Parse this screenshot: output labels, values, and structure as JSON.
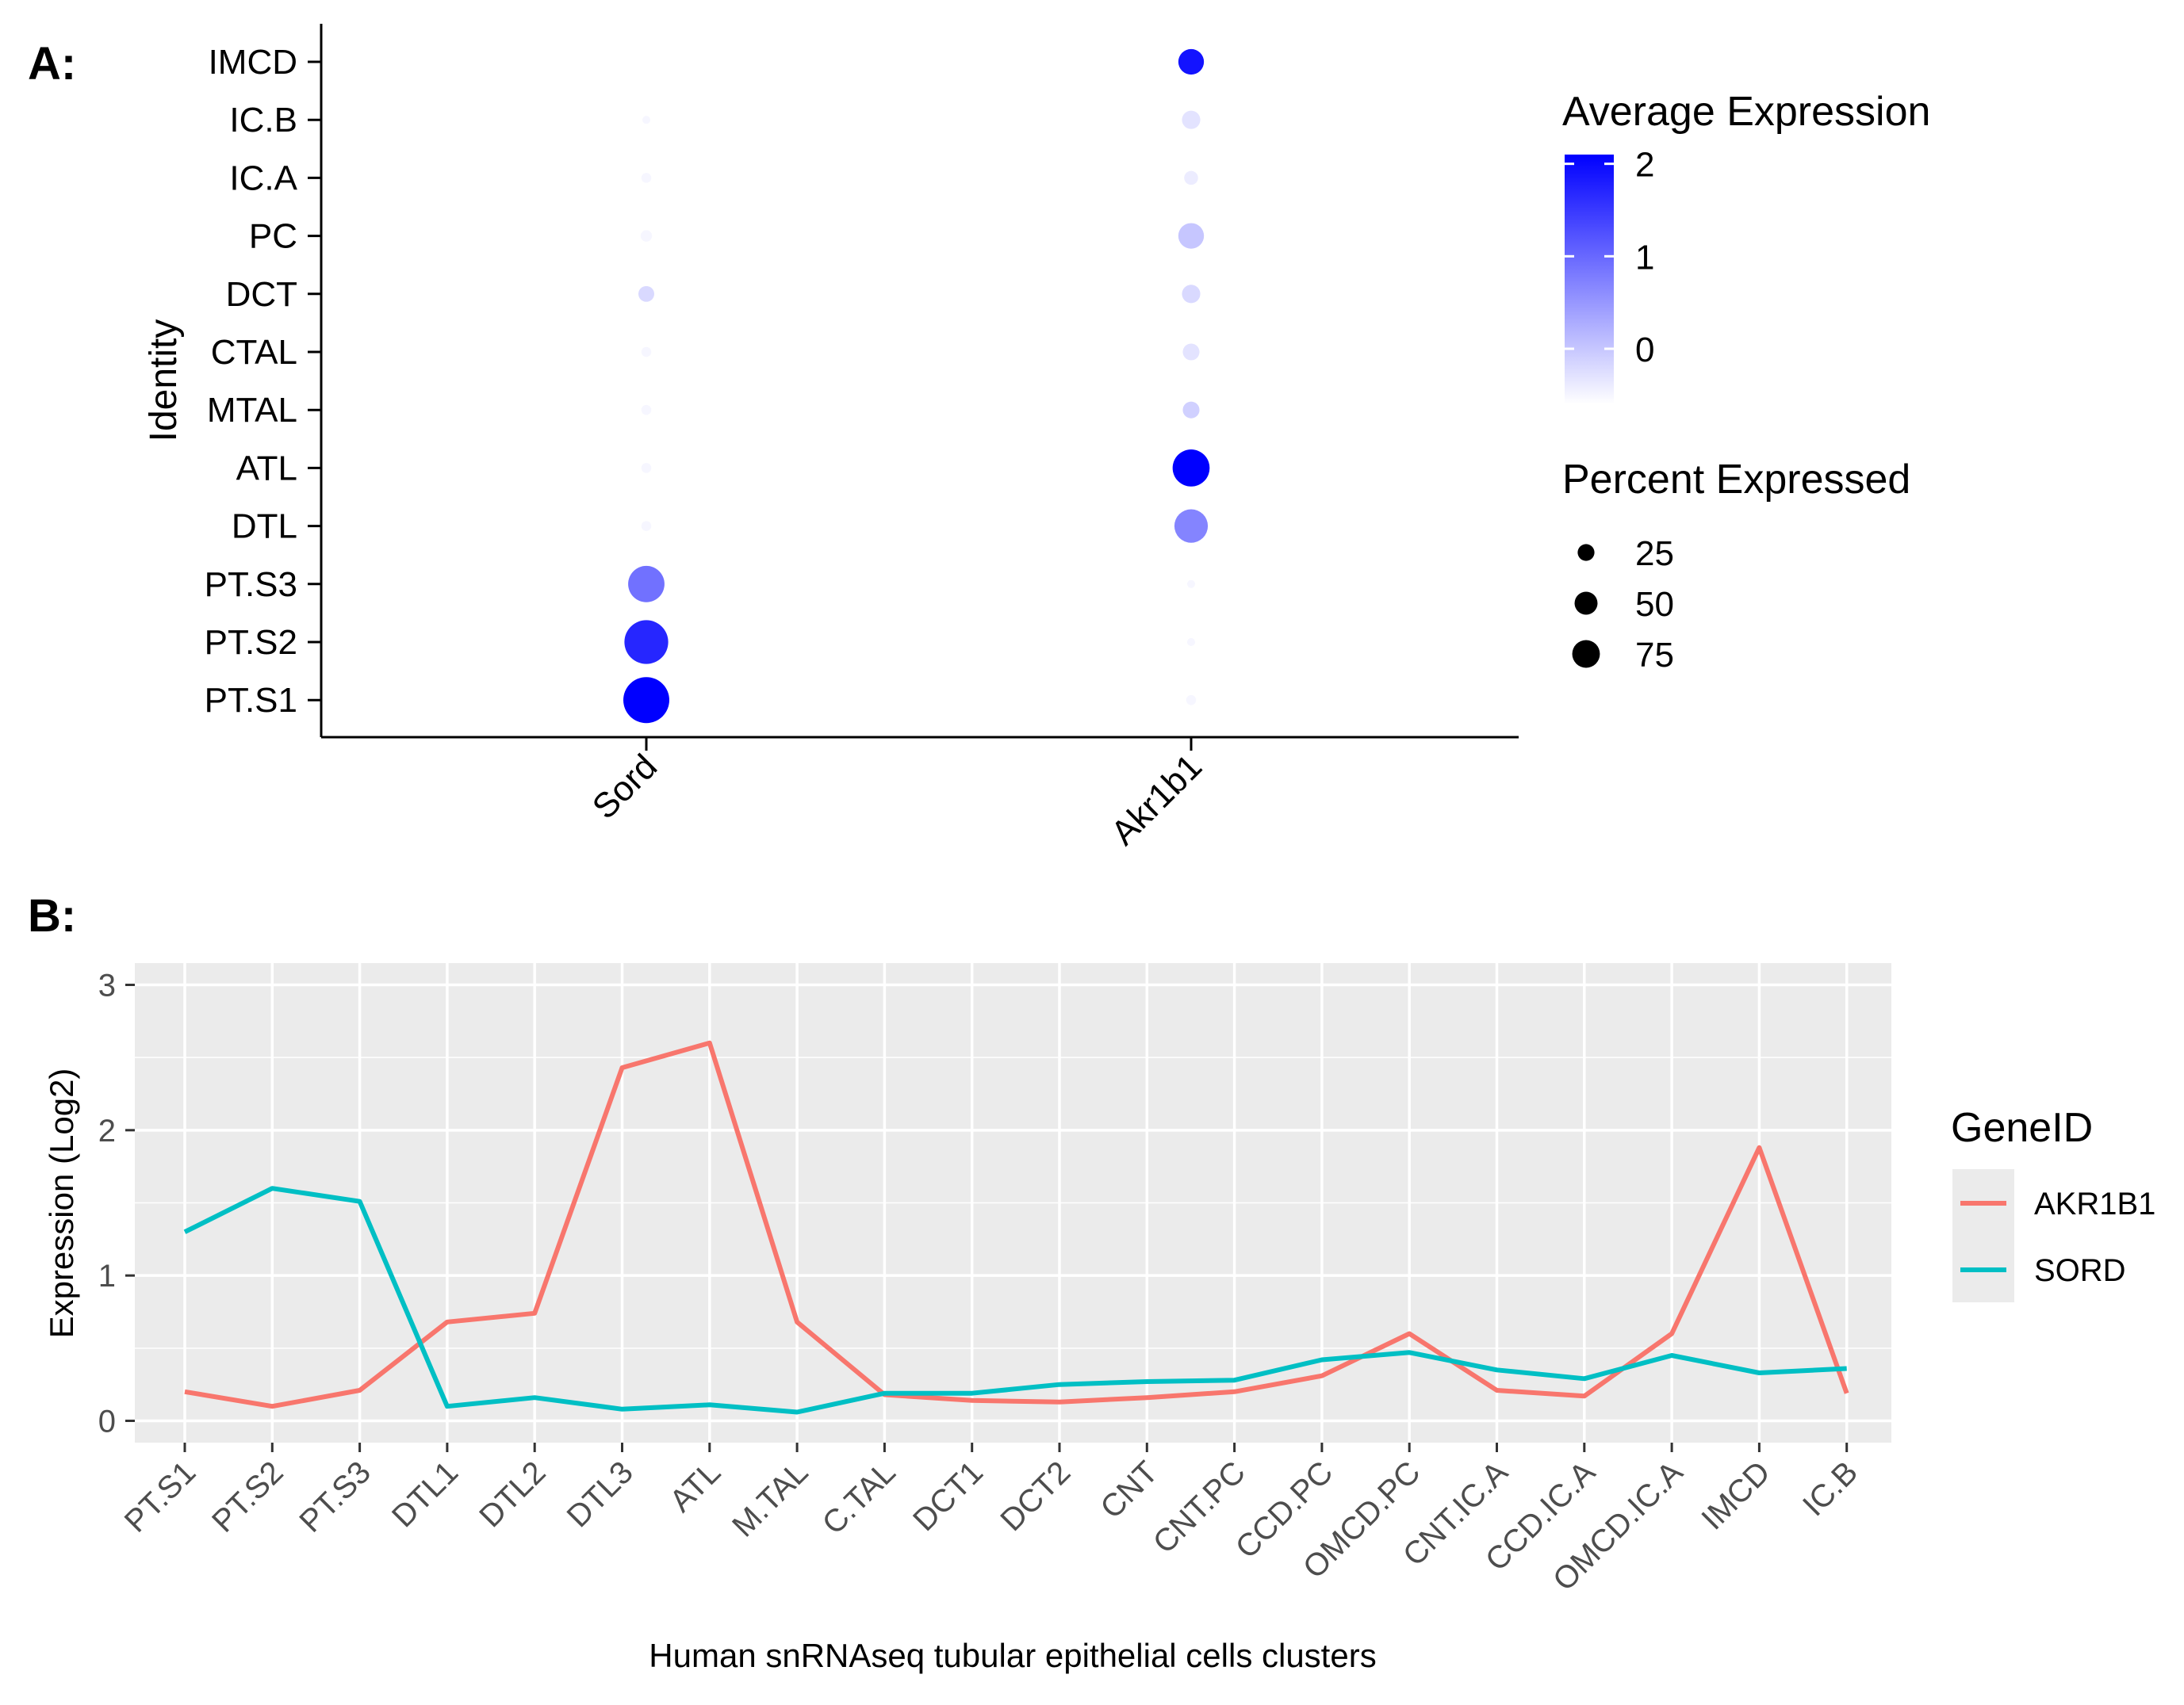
{
  "panels": {
    "a_label": "A:",
    "b_label": "B:"
  },
  "chart_data": [
    {
      "type": "scatter",
      "subtype": "dotplot",
      "ylabel": "Identity",
      "xlabel": "",
      "x_categories": [
        "Sord",
        "Akr1b1"
      ],
      "y_categories": [
        "PT.S1",
        "PT.S2",
        "PT.S3",
        "DTL",
        "ATL",
        "MTAL",
        "CTAL",
        "DCT",
        "PC",
        "IC.A",
        "IC.B",
        "IMCD"
      ],
      "points": [
        {
          "gene": "Sord",
          "identity": "PT.S1",
          "pct": 80,
          "avg": 2.1
        },
        {
          "gene": "Sord",
          "identity": "PT.S2",
          "pct": 72,
          "avg": 1.7
        },
        {
          "gene": "Sord",
          "identity": "PT.S3",
          "pct": 48,
          "avg": 0.9
        },
        {
          "gene": "Sord",
          "identity": "DTL",
          "pct": 2,
          "avg": -0.5
        },
        {
          "gene": "Sord",
          "identity": "ATL",
          "pct": 2,
          "avg": -0.5
        },
        {
          "gene": "Sord",
          "identity": "MTAL",
          "pct": 2,
          "avg": -0.5
        },
        {
          "gene": "Sord",
          "identity": "CTAL",
          "pct": 2,
          "avg": -0.5
        },
        {
          "gene": "Sord",
          "identity": "DCT",
          "pct": 7,
          "avg": -0.2
        },
        {
          "gene": "Sord",
          "identity": "PC",
          "pct": 3,
          "avg": -0.5
        },
        {
          "gene": "Sord",
          "identity": "IC.A",
          "pct": 2,
          "avg": -0.5
        },
        {
          "gene": "Sord",
          "identity": "IC.B",
          "pct": 1,
          "avg": -0.5
        },
        {
          "gene": "Akr1b1",
          "identity": "PT.S1",
          "pct": 2,
          "avg": -0.5
        },
        {
          "gene": "Akr1b1",
          "identity": "PT.S2",
          "pct": 1,
          "avg": -0.5
        },
        {
          "gene": "Akr1b1",
          "identity": "PT.S3",
          "pct": 1,
          "avg": -0.5
        },
        {
          "gene": "Akr1b1",
          "identity": "DTL",
          "pct": 40,
          "avg": 0.7
        },
        {
          "gene": "Akr1b1",
          "identity": "ATL",
          "pct": 50,
          "avg": 2.2
        },
        {
          "gene": "Akr1b1",
          "identity": "MTAL",
          "pct": 8,
          "avg": -0.1
        },
        {
          "gene": "Akr1b1",
          "identity": "CTAL",
          "pct": 8,
          "avg": -0.3
        },
        {
          "gene": "Akr1b1",
          "identity": "DCT",
          "pct": 10,
          "avg": -0.2
        },
        {
          "gene": "Akr1b1",
          "identity": "PC",
          "pct": 22,
          "avg": 0.0
        },
        {
          "gene": "Akr1b1",
          "identity": "IC.A",
          "pct": 5,
          "avg": -0.4
        },
        {
          "gene": "Akr1b1",
          "identity": "IC.B",
          "pct": 10,
          "avg": -0.3
        },
        {
          "gene": "Akr1b1",
          "identity": "IMCD",
          "pct": 22,
          "avg": 1.9
        }
      ],
      "color_legend": {
        "title": "Average Expression",
        "ticks": [
          "2",
          "1",
          "0"
        ],
        "range": [
          -0.6,
          2.1
        ],
        "low_color": "#ffffff",
        "high_color": "#0000ff"
      },
      "size_legend": {
        "title": "Percent Expressed",
        "values": [
          25,
          50,
          75
        ],
        "labels": [
          "25",
          "50",
          "75"
        ]
      },
      "colors": {
        "axis": "#000000",
        "high": "#0000ff",
        "low": "#ffffff"
      }
    },
    {
      "type": "line",
      "title": "",
      "xlabel": "Human snRNAseq tubular epithelial cells clusters",
      "ylabel": "Expression (Log2)",
      "ylim": [
        -0.15,
        3.15
      ],
      "yticks": [
        "0",
        "1",
        "2",
        "3"
      ],
      "categories": [
        "PT.S1",
        "PT.S2",
        "PT.S3",
        "DTL1",
        "DTL2",
        "DTL3",
        "ATL",
        "M.TAL",
        "C.TAL",
        "DCT1",
        "DCT2",
        "CNT",
        "CNT.PC",
        "CCD.PC",
        "OMCD.PC",
        "CNT.IC.A",
        "CCD.IC.A",
        "OMCD.IC.A",
        "IMCD",
        "IC.B"
      ],
      "series": [
        {
          "name": "AKR1B1",
          "color": "#f8766d",
          "values": [
            0.2,
            0.1,
            0.21,
            0.68,
            0.74,
            2.43,
            2.6,
            0.68,
            0.18,
            0.14,
            0.13,
            0.16,
            0.2,
            0.31,
            0.6,
            0.21,
            0.17,
            0.6,
            1.88,
            0.19
          ]
        },
        {
          "name": "SORD",
          "color": "#00bfc4",
          "values": [
            1.3,
            1.6,
            1.51,
            0.1,
            0.16,
            0.08,
            0.11,
            0.06,
            0.19,
            0.19,
            0.25,
            0.27,
            0.28,
            0.42,
            0.47,
            0.35,
            0.29,
            0.45,
            0.33,
            0.36
          ]
        }
      ],
      "legend": {
        "title": "GeneID",
        "position": "right"
      },
      "grid": true,
      "colors": {
        "panel_bg": "#ebebeb",
        "grid": "#ffffff",
        "tick_text": "#4d4d4d"
      }
    }
  ]
}
